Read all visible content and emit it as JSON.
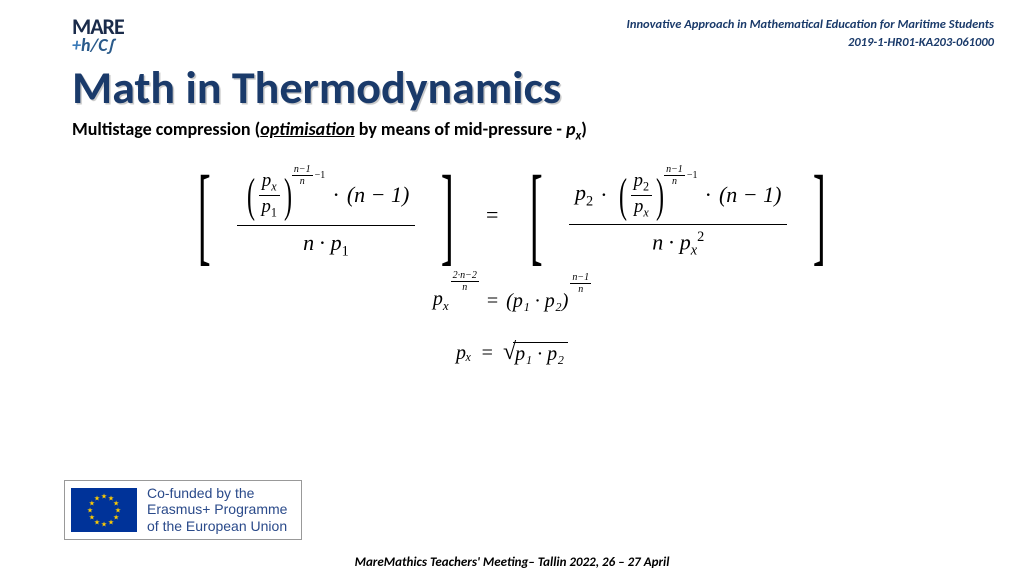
{
  "colors": {
    "title": "#1a3a6a",
    "header_text": "#1a3a6a",
    "logo_dark": "#1a2b4a",
    "logo_blue": "#2a5a8a",
    "logo_plus": "#3a7ab8",
    "funding_text": "#2a4a8a",
    "eu_flag_bg": "#003399",
    "eu_star": "#ffcc00",
    "background": "#ffffff"
  },
  "logo": {
    "top": "MARE",
    "plus": "+",
    "bottom_rest": "h/C∫"
  },
  "header": {
    "line1": "Innovative Approach in Mathematical Education for Maritime Students",
    "line2": "2019-1-HR01-KA203-061000"
  },
  "title": "Math in Thermodynamics",
  "subtitle": {
    "prefix": "Multistage compression (",
    "opt": "optimisation",
    "mid": " by means of mid-pressure - ",
    "px": "p",
    "px_sub": "x",
    "suffix": ")"
  },
  "eq": {
    "px": "p",
    "x": "x",
    "p1": "p",
    "one": "1",
    "p2": "p",
    "two": "2",
    "n": "n",
    "nminus1": "n−1",
    "minus1": "−1",
    "dot": "∙",
    "times_nminus1": "(n − 1)",
    "n_dot_p1": "n ∙ p₁",
    "n_dot_px2_pre": "n ∙ p",
    "sq": "2",
    "eq2_exp_num": "2∙n−2",
    "eq2_rhs_base": "(p₁ ∙ p₂)",
    "eq3_lhs": "pₓ",
    "eq3_radicand": "p₁ ∙ p₂",
    "equals": "="
  },
  "funding": {
    "line1": "Co-funded by the",
    "line2": "Erasmus+ Programme",
    "line3": "of the European Union"
  },
  "footer": "MareMathics Teachers' Meeting– Tallin 2022, 26 – 27 April"
}
